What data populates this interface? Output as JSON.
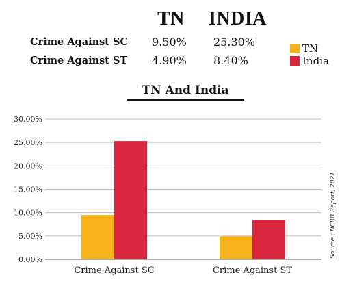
{
  "table": {
    "col_tn": "TN",
    "col_india": "INDIA",
    "rows": [
      {
        "label": "Crime Against SC",
        "tn": "9.50%",
        "india": "25.30%"
      },
      {
        "label": "Crime Against ST",
        "tn": "4.90%",
        "india": "8.40%"
      }
    ]
  },
  "legend": [
    {
      "label": "TN",
      "color": "#F5B21B"
    },
    {
      "label": "India",
      "color": "#D7263D"
    }
  ],
  "source": "Source : NCRB Report, 2021",
  "chart_data": {
    "type": "bar",
    "title": "TN And India",
    "categories": [
      "Crime Against SC",
      "Crime Against ST"
    ],
    "series": [
      {
        "name": "TN",
        "values": [
          9.5,
          4.9
        ],
        "color": "#F5B21B"
      },
      {
        "name": "India",
        "values": [
          25.3,
          8.4
        ],
        "color": "#D7263D"
      }
    ],
    "ylim": [
      0,
      30
    ],
    "yticks": [
      "0.00%",
      "5.00%",
      "10.00%",
      "15.00%",
      "20.00%",
      "25.00%",
      "30.00%"
    ],
    "ytick_values": [
      0,
      5,
      10,
      15,
      20,
      25,
      30
    ],
    "grid": true
  }
}
